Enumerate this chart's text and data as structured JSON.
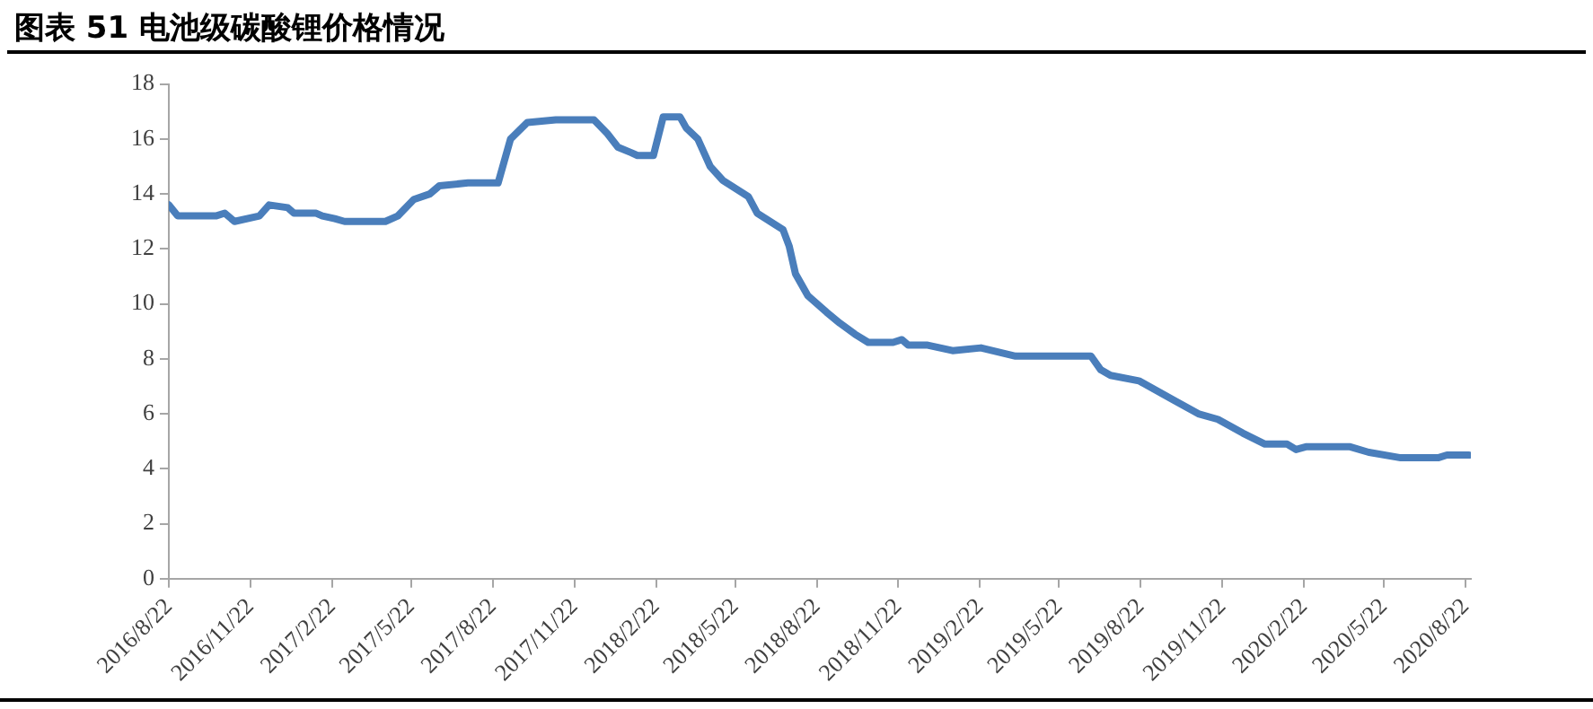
{
  "chart_data": {
    "type": "line",
    "title": "图表 51 电池级碳酸锂价格情况",
    "x": [
      "2016-08-22",
      "2016-09-01",
      "2016-10-14",
      "2016-10-24",
      "2016-11-04",
      "2016-12-02",
      "2016-12-13",
      "2017-01-03",
      "2017-01-10",
      "2017-02-04",
      "2017-02-11",
      "2017-02-25",
      "2017-03-08",
      "2017-04-23",
      "2017-05-07",
      "2017-05-25",
      "2017-06-12",
      "2017-06-23",
      "2017-07-25",
      "2017-08-28",
      "2017-09-04",
      "2017-09-11",
      "2017-09-30",
      "2017-11-01",
      "2017-12-14",
      "2017-12-29",
      "2018-01-10",
      "2018-01-25",
      "2018-02-01",
      "2018-02-19",
      "2018-03-02",
      "2018-03-21",
      "2018-03-28",
      "2018-04-10",
      "2018-04-24",
      "2018-05-08",
      "2018-06-06",
      "2018-06-16",
      "2018-07-15",
      "2018-07-22",
      "2018-07-29",
      "2018-08-12",
      "2018-09-02",
      "2018-09-17",
      "2018-10-04",
      "2018-10-19",
      "2018-11-16",
      "2018-11-26",
      "2018-12-03",
      "2018-12-25",
      "2019-01-22",
      "2019-02-23",
      "2019-04-03",
      "2019-06-27",
      "2019-07-08",
      "2019-07-19",
      "2019-08-20",
      "2019-09-28",
      "2019-10-26",
      "2019-11-17",
      "2019-12-15",
      "2020-01-09",
      "2020-02-03",
      "2020-02-13",
      "2020-02-24",
      "2020-04-14",
      "2020-05-05",
      "2020-06-10",
      "2020-07-22",
      "2020-08-01",
      "2020-08-26"
    ],
    "series": [
      {
        "color": "#4a7ebb",
        "values": [
          13.6,
          13.2,
          13.2,
          13.3,
          13.0,
          13.2,
          13.6,
          13.5,
          13.3,
          13.3,
          13.2,
          13.1,
          13.0,
          13.0,
          13.2,
          13.8,
          14.0,
          14.3,
          14.4,
          14.4,
          15.2,
          16.0,
          16.6,
          16.7,
          16.7,
          16.2,
          15.7,
          15.5,
          15.4,
          15.4,
          16.8,
          16.8,
          16.4,
          16.0,
          15.0,
          14.5,
          13.9,
          13.3,
          12.7,
          12.1,
          11.1,
          10.3,
          9.7,
          9.3,
          8.9,
          8.6,
          8.6,
          8.7,
          8.5,
          8.5,
          8.3,
          8.4,
          8.1,
          8.1,
          7.6,
          7.4,
          7.2,
          6.5,
          6.0,
          5.8,
          5.3,
          4.9,
          4.9,
          4.7,
          4.8,
          4.8,
          4.6,
          4.4,
          4.4,
          4.5,
          4.5
        ]
      }
    ],
    "ylim": [
      0,
      18
    ],
    "yticks": [
      0,
      2,
      4,
      6,
      8,
      10,
      12,
      14,
      16,
      18
    ],
    "xlim": [
      "2016-08-22",
      "2020-08-28"
    ],
    "xticks": [
      {
        "value": "2016-08-22",
        "label": "2016/8/22"
      },
      {
        "value": "2016-11-22",
        "label": "2016/11/22"
      },
      {
        "value": "2017-02-22",
        "label": "2017/2/22"
      },
      {
        "value": "2017-05-22",
        "label": "2017/5/22"
      },
      {
        "value": "2017-08-22",
        "label": "2017/8/22"
      },
      {
        "value": "2017-11-22",
        "label": "2017/11/22"
      },
      {
        "value": "2018-02-22",
        "label": "2018/2/22"
      },
      {
        "value": "2018-05-22",
        "label": "2018/5/22"
      },
      {
        "value": "2018-08-22",
        "label": "2018/8/22"
      },
      {
        "value": "2018-11-22",
        "label": "2018/11/22"
      },
      {
        "value": "2019-02-22",
        "label": "2019/2/22"
      },
      {
        "value": "2019-05-22",
        "label": "2019/5/22"
      },
      {
        "value": "2019-08-22",
        "label": "2019/8/22"
      },
      {
        "value": "2019-11-22",
        "label": "2019/11/22"
      },
      {
        "value": "2020-02-22",
        "label": "2020/2/22"
      },
      {
        "value": "2020-05-22",
        "label": "2020/5/22"
      },
      {
        "value": "2020-08-22",
        "label": "2020/8/22"
      }
    ],
    "marker": "none",
    "line_style": "solid"
  }
}
